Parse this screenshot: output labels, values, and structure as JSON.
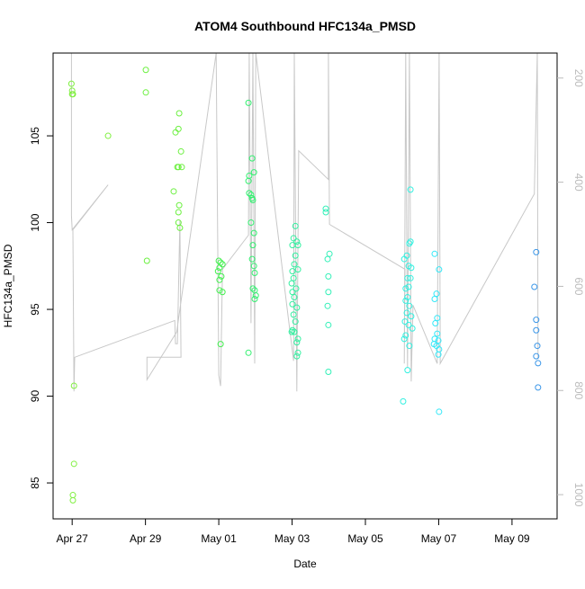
{
  "chart_data": {
    "type": "scatter",
    "title": "ATOM4 Southbound HFC134a_PMSD",
    "x_label": "Date",
    "y_label": "HFC134a_PMSD",
    "xlim": [
      -0.52,
      13.23
    ],
    "ylim": [
      82.93,
      109.77
    ],
    "y2lim": [
      1046.5,
      152
    ],
    "xticks": [
      {
        "value": 0,
        "label": "Apr 27"
      },
      {
        "value": 2,
        "label": "Apr 29"
      },
      {
        "value": 4,
        "label": "May 01"
      },
      {
        "value": 6,
        "label": "May 03"
      },
      {
        "value": 8,
        "label": "May 05"
      },
      {
        "value": 10,
        "label": "May 07"
      },
      {
        "value": 12,
        "label": "May 09"
      }
    ],
    "yticks": [
      85,
      90,
      95,
      100,
      105
    ],
    "y2ticks": [
      200,
      400,
      600,
      800,
      1000
    ],
    "series": [
      {
        "type": "line",
        "axis": "y2",
        "color": "#c8c8c8",
        "x": [
          -0.02,
          -0.02,
          0,
          0.98,
          0.02,
          0.05,
          0.07,
          2.8,
          2.82,
          2.87,
          2.94,
          2.97,
          2.04,
          2.04,
          2.85,
          3.93,
          4.0,
          4.05,
          4.1,
          4.81,
          4.83,
          4.88,
          4.93,
          4.98,
          5.01,
          6.04,
          6.06,
          6.13,
          6.18,
          6.99,
          6.99,
          7.02,
          9.08,
          9.06,
          9.1,
          9.15,
          9.2,
          9.25,
          9.3,
          9.96,
          10.01,
          10.04,
          10.04,
          12.61,
          12.69,
          12.71
        ],
        "values": [
          152,
          463.8,
          491.4,
          405.2,
          491.4,
          801.7,
          736.2,
          665.5,
          710.3,
          710.3,
          472.4,
          736.2,
          736.2,
          779.3,
          687.9,
          152,
          770.7,
          791.4,
          567.2,
          501.7,
          152,
          670.7,
          152,
          748.3,
          152,
          743.1,
          152,
          801.7,
          339.7,
          394.8,
          152,
          481.0,
          567.2,
          748.3,
          152,
          756.9,
          152,
          782.8,
          636.2,
          748.3,
          152,
          696.6,
          748.3,
          422.4,
          152,
          739.7
        ]
      },
      {
        "type": "scatter",
        "color": "#80f040",
        "x": [
          -0.02,
          0,
          0,
          0.02,
          0.05,
          0.05,
          0.02,
          0.02,
          0.98
        ],
        "values": [
          108.0,
          107.6,
          107.4,
          107.4,
          90.6,
          86.1,
          84.3,
          84.0,
          105.0
        ]
      },
      {
        "type": "scatter",
        "color": "#6cf040",
        "x": [
          2.01,
          2.01,
          2.04,
          2.92,
          2.9,
          2.82,
          2.97,
          2.9,
          2.99,
          2.87,
          2.77,
          2.92,
          2.9,
          2.9,
          2.94
        ],
        "values": [
          108.8,
          107.5,
          97.8,
          106.3,
          105.4,
          105.2,
          104.1,
          103.2,
          103.2,
          103.2,
          101.8,
          101.0,
          100.6,
          100.0,
          99.7
        ]
      },
      {
        "type": "scatter",
        "color": "#44f050",
        "x": [
          4.0,
          4.05,
          4.1,
          4.02,
          3.98,
          4.07,
          4.02,
          4.02,
          4.1,
          4.05
        ],
        "values": [
          97.8,
          97.7,
          97.6,
          97.4,
          97.2,
          96.9,
          96.7,
          96.1,
          96.0,
          93.0
        ]
      },
      {
        "type": "scatter",
        "color": "#33f070",
        "x": [
          4.81,
          4.91,
          4.96,
          4.83,
          4.81,
          4.83,
          4.88,
          4.91,
          4.93,
          4.88,
          4.96,
          4.93,
          4.91,
          4.96,
          4.98,
          4.93,
          4.98,
          5.01,
          4.98,
          4.81
        ],
        "values": [
          106.9,
          103.7,
          102.9,
          102.7,
          102.4,
          101.7,
          101.6,
          101.4,
          101.3,
          100.0,
          99.4,
          98.7,
          97.9,
          97.5,
          97.1,
          96.2,
          96.1,
          95.8,
          95.6,
          92.5
        ]
      },
      {
        "type": "scatter",
        "color": "#33f0a0",
        "x": [
          6.09,
          6.04,
          6.13,
          6.01,
          6.16,
          6.09,
          6.06,
          6.16,
          6.01,
          6.04,
          5.99,
          6.11,
          6.01,
          6.06,
          6.01,
          6.13,
          6.04,
          6.09,
          6.01,
          6.06,
          5.99,
          6.16,
          6.13,
          6.16,
          6.13
        ],
        "values": [
          99.8,
          99.1,
          98.9,
          98.7,
          98.7,
          98.1,
          97.6,
          97.3,
          97.2,
          96.8,
          96.5,
          96.2,
          96.0,
          95.7,
          95.3,
          95.1,
          94.7,
          94.3,
          93.8,
          93.7,
          93.7,
          93.3,
          93.1,
          92.5,
          92.3
        ]
      },
      {
        "type": "scatter",
        "color": "#33f0b8",
        "x": [
          6.92,
          6.92,
          7.02,
          6.97,
          6.99,
          6.99,
          6.97,
          6.99,
          6.99
        ],
        "values": [
          100.8,
          100.6,
          98.2,
          97.9,
          96.9,
          96.0,
          95.2,
          94.1,
          91.4
        ]
      },
      {
        "type": "scatter",
        "color": "#33f0e0",
        "x": [
          9.03,
          9.18,
          9.06,
          9.23,
          9.2,
          9.23,
          9.13,
          9.18,
          9.25,
          9.15,
          9.23,
          9.1,
          9.15,
          9.1,
          9.2,
          9.13,
          9.25,
          9.08,
          9.18,
          9.28,
          9.1,
          9.06,
          9.2,
          9.15
        ],
        "values": [
          89.7,
          96.3,
          97.9,
          101.9,
          98.8,
          98.9,
          98.1,
          97.5,
          97.4,
          96.8,
          96.8,
          96.2,
          95.7,
          95.5,
          95.2,
          94.8,
          94.6,
          94.3,
          94.1,
          93.9,
          93.5,
          93.3,
          92.9,
          91.5
        ]
      },
      {
        "type": "scatter",
        "color": "#33e8f8",
        "x": [
          9.89,
          10.01,
          9.94,
          9.89,
          9.96,
          9.91,
          9.96,
          9.89,
          9.99,
          9.87,
          9.94,
          10.01,
          9.99,
          10.01
        ],
        "values": [
          98.2,
          97.3,
          95.9,
          95.6,
          94.5,
          94.2,
          93.6,
          93.3,
          93.2,
          93.0,
          92.9,
          92.7,
          92.4,
          89.1
        ]
      },
      {
        "type": "scatter",
        "color": "#3a96e8",
        "x": [
          12.66,
          12.61,
          12.66,
          12.66,
          12.69,
          12.66,
          12.71,
          12.71
        ],
        "values": [
          98.3,
          96.3,
          94.4,
          93.8,
          92.9,
          92.3,
          91.9,
          90.5
        ]
      }
    ]
  }
}
